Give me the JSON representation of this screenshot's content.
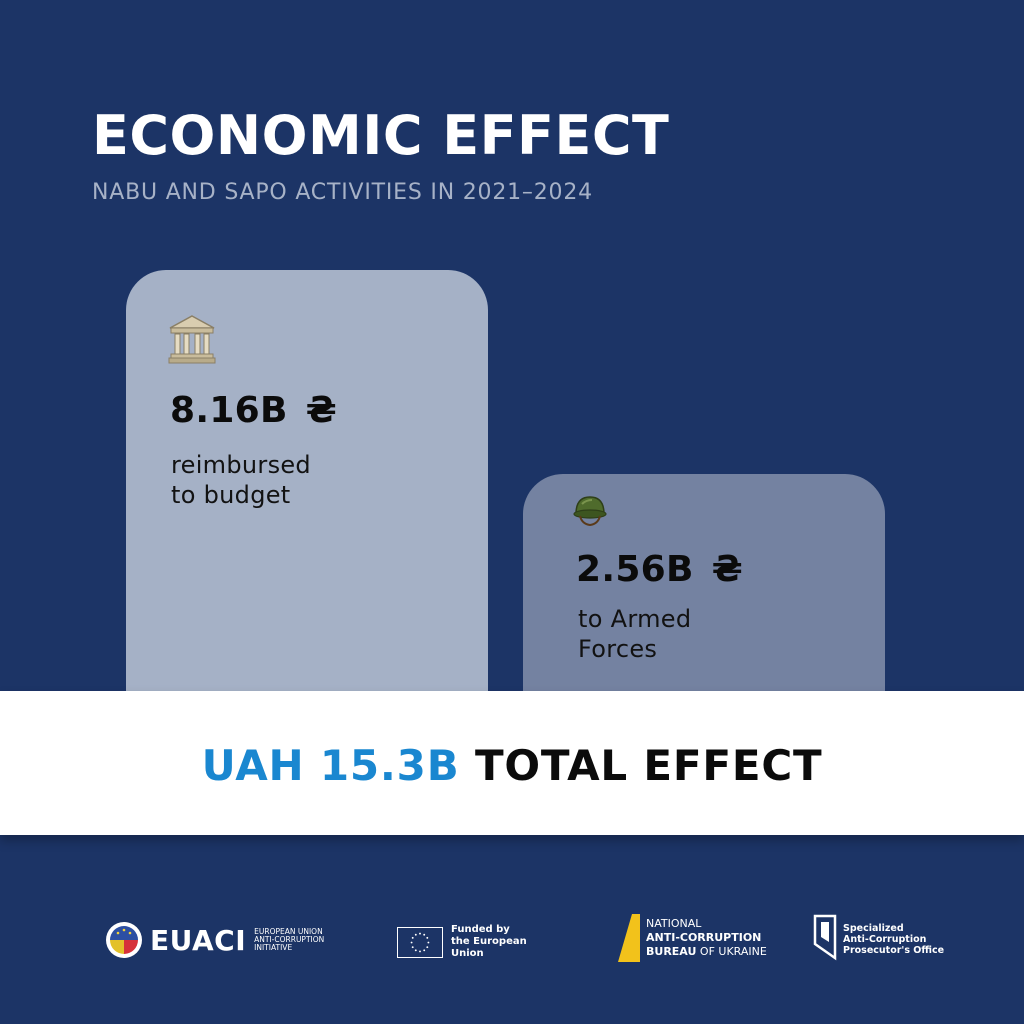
{
  "header": {
    "title": "ECONOMIC EFFECT",
    "subtitle": "NABU AND SAPO ACTIVITIES IN 2021–2024"
  },
  "cards": [
    {
      "icon": "classical-building-icon",
      "amount": "8.16B",
      "currency": "₴",
      "label_line1": "reimbursed",
      "label_line2": "to budget",
      "color": "#a5b1c6"
    },
    {
      "icon": "military-helmet-icon",
      "amount": "2.56B",
      "currency": "₴",
      "label_line1": "to Armed",
      "label_line2": "Forces",
      "color": "#7482a1"
    }
  ],
  "total": {
    "amount": "UAH 15.3B",
    "label": "TOTAL EFFECT",
    "accent_color": "#1a87d0"
  },
  "footer": {
    "euaci": {
      "name": "EUACI",
      "line1": "EUROPEAN UNION",
      "line2": "ANTI-CORRUPTION",
      "line3": "INITIATIVE"
    },
    "eu": {
      "line1": "Funded by",
      "line2": "the European Union"
    },
    "nabu": {
      "line1": "NATIONAL",
      "line2": "ANTI-CORRUPTION",
      "line3_bold": "BUREAU",
      "line3_rest": " OF UKRAINE"
    },
    "sapo": {
      "line1": "Specialized",
      "line2": "Anti-Corruption",
      "line3": "Prosecutor's Office"
    }
  },
  "colors": {
    "background": "#1c3466",
    "subtitle": "#a7b2c7",
    "band": "#ffffff"
  }
}
